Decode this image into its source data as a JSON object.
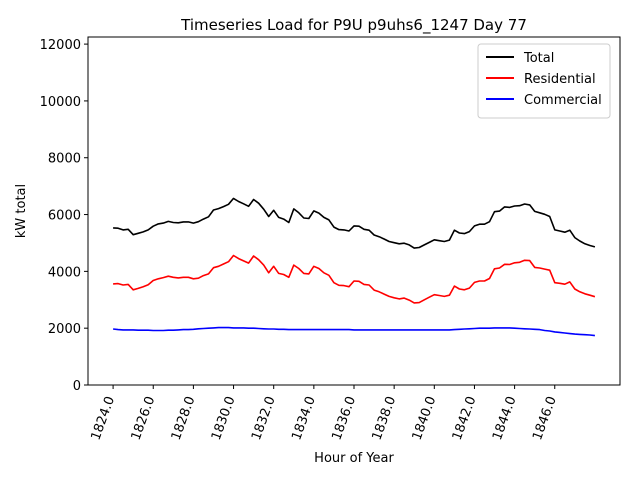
{
  "chart_data": {
    "type": "line",
    "title": "Timeseries Load for P9U p9uhs6_1247  Day 77",
    "xlabel": "Hour of Year",
    "ylabel": "kW total",
    "xlim": [
      1822.75,
      1849.25
    ],
    "ylim": [
      0,
      12250
    ],
    "xticks": [
      1824,
      1826,
      1828,
      1830,
      1832,
      1834,
      1836,
      1838,
      1840,
      1842,
      1844,
      1846
    ],
    "xtick_labels": [
      "1824.0",
      "1826.0",
      "1828.0",
      "1830.0",
      "1832.0",
      "1834.0",
      "1836.0",
      "1838.0",
      "1840.0",
      "1842.0",
      "1844.0",
      "1846.0"
    ],
    "yticks": [
      0,
      2000,
      4000,
      6000,
      8000,
      10000,
      12000
    ],
    "ytick_labels": [
      "0",
      "2000",
      "4000",
      "6000",
      "8000",
      "10000",
      "12000"
    ],
    "legend_position": "top-right",
    "x": [
      1824.0,
      1824.25,
      1824.5,
      1824.75,
      1825.0,
      1825.25,
      1825.5,
      1825.75,
      1826.0,
      1826.25,
      1826.5,
      1826.75,
      1827.0,
      1827.25,
      1827.5,
      1827.75,
      1828.0,
      1828.25,
      1828.5,
      1828.75,
      1829.0,
      1829.25,
      1829.5,
      1829.75,
      1830.0,
      1830.25,
      1830.5,
      1830.75,
      1831.0,
      1831.25,
      1831.5,
      1831.75,
      1832.0,
      1832.25,
      1832.5,
      1832.75,
      1833.0,
      1833.25,
      1833.5,
      1833.75,
      1834.0,
      1834.25,
      1834.5,
      1834.75,
      1835.0,
      1835.25,
      1835.5,
      1835.75,
      1836.0,
      1836.25,
      1836.5,
      1836.75,
      1837.0,
      1837.25,
      1837.5,
      1837.75,
      1838.0,
      1838.25,
      1838.5,
      1838.75,
      1839.0,
      1839.25,
      1839.5,
      1839.75,
      1840.0,
      1840.25,
      1840.5,
      1840.75,
      1841.0,
      1841.25,
      1841.5,
      1841.75,
      1842.0,
      1842.25,
      1842.5,
      1842.75,
      1843.0,
      1843.25,
      1843.5,
      1843.75,
      1844.0,
      1844.25,
      1844.5,
      1844.75,
      1845.0,
      1845.25,
      1845.5,
      1845.75,
      1846.0,
      1846.25,
      1846.5,
      1846.75,
      1847.0,
      1847.25,
      1847.5,
      1847.75,
      1848.0
    ],
    "series": [
      {
        "name": "Total",
        "color": "#000000",
        "values": [
          5530,
          5520,
          5460,
          5480,
          5290,
          5340,
          5390,
          5460,
          5590,
          5670,
          5700,
          5760,
          5720,
          5710,
          5740,
          5740,
          5700,
          5750,
          5840,
          5920,
          6160,
          6210,
          6280,
          6360,
          6570,
          6460,
          6380,
          6290,
          6530,
          6400,
          6190,
          5930,
          6150,
          5900,
          5840,
          5720,
          6200,
          6060,
          5880,
          5860,
          6130,
          6050,
          5900,
          5810,
          5560,
          5470,
          5460,
          5420,
          5600,
          5590,
          5480,
          5450,
          5280,
          5220,
          5140,
          5050,
          5010,
          4970,
          4990,
          4930,
          4820,
          4840,
          4930,
          5020,
          5110,
          5080,
          5050,
          5100,
          5450,
          5350,
          5330,
          5400,
          5600,
          5660,
          5660,
          5750,
          6100,
          6120,
          6270,
          6250,
          6300,
          6310,
          6370,
          6340,
          6110,
          6060,
          6010,
          5930,
          5460,
          5420,
          5380,
          5450,
          5190,
          5070,
          4970,
          4910,
          4860
        ]
      },
      {
        "name": "Residential",
        "color": "#ff0000",
        "values": [
          3560,
          3570,
          3520,
          3540,
          3350,
          3400,
          3460,
          3530,
          3680,
          3740,
          3780,
          3830,
          3790,
          3770,
          3790,
          3790,
          3740,
          3760,
          3850,
          3910,
          4130,
          4180,
          4260,
          4340,
          4560,
          4450,
          4370,
          4290,
          4540,
          4410,
          4220,
          3950,
          4180,
          3930,
          3890,
          3790,
          4220,
          4100,
          3930,
          3910,
          4180,
          4100,
          3950,
          3860,
          3600,
          3510,
          3500,
          3460,
          3660,
          3650,
          3540,
          3520,
          3340,
          3280,
          3200,
          3120,
          3070,
          3030,
          3060,
          2990,
          2890,
          2900,
          3000,
          3090,
          3180,
          3150,
          3120,
          3160,
          3480,
          3380,
          3350,
          3410,
          3610,
          3660,
          3660,
          3750,
          4090,
          4120,
          4250,
          4240,
          4300,
          4320,
          4390,
          4380,
          4140,
          4120,
          4080,
          4040,
          3600,
          3580,
          3550,
          3630,
          3380,
          3280,
          3210,
          3160,
          3110
        ]
      },
      {
        "name": "Commercial",
        "color": "#0000ff",
        "values": [
          1970,
          1950,
          1940,
          1940,
          1940,
          1930,
          1930,
          1930,
          1920,
          1920,
          1920,
          1930,
          1930,
          1940,
          1950,
          1950,
          1960,
          1980,
          1990,
          2000,
          2010,
          2020,
          2020,
          2020,
          2010,
          2010,
          2010,
          2000,
          2000,
          1990,
          1980,
          1970,
          1970,
          1960,
          1960,
          1950,
          1950,
          1950,
          1950,
          1950,
          1950,
          1950,
          1950,
          1950,
          1950,
          1950,
          1950,
          1950,
          1940,
          1940,
          1940,
          1940,
          1940,
          1940,
          1940,
          1940,
          1940,
          1940,
          1940,
          1940,
          1940,
          1940,
          1940,
          1940,
          1940,
          1940,
          1940,
          1940,
          1950,
          1960,
          1970,
          1980,
          1990,
          2000,
          2000,
          2000,
          2010,
          2010,
          2010,
          2010,
          2000,
          1990,
          1980,
          1970,
          1960,
          1950,
          1920,
          1900,
          1870,
          1850,
          1830,
          1810,
          1790,
          1780,
          1770,
          1760,
          1740
        ]
      }
    ]
  }
}
